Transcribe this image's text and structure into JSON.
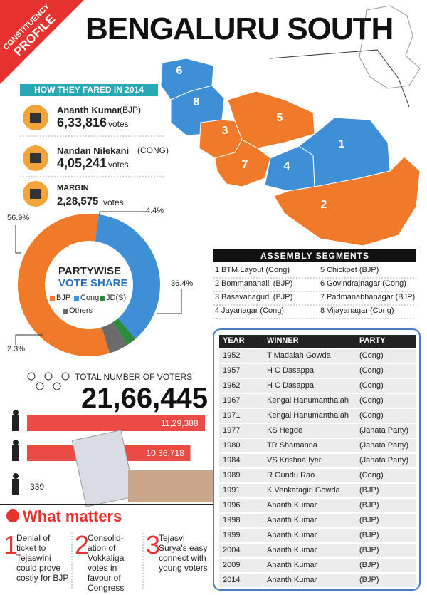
{
  "header": {
    "ribbon_1": "CONSTITUENCY",
    "ribbon_2": "PROFILE",
    "title": "BENGALURU SOUTH"
  },
  "results": {
    "heading": "HOW THEY FARED IN 2014",
    "candidates": [
      {
        "name": "Ananth Kumar",
        "party": "(BJP)",
        "votes": "6,33,816",
        "unit": "votes"
      },
      {
        "name": "Nandan Nilekani",
        "party": "(CONG)",
        "votes": "4,05,241",
        "unit": "votes"
      }
    ],
    "margin_label": "MARGIN",
    "margin": "2,28,575",
    "margin_unit": "votes"
  },
  "vote_share": {
    "title_1": "PARTYWISE",
    "title_2": "VOTE SHARE",
    "series": [
      {
        "name": "BJP",
        "color": "#f07a2a",
        "value": 56.9,
        "value_label": "56.9%"
      },
      {
        "name": "Cong",
        "color": "#3e8fd6",
        "value": 36.4,
        "value_label": "36.4%"
      },
      {
        "name": "JD(S)",
        "color": "#2e8b3e",
        "value": 2.3,
        "value_label": "2.3%"
      },
      {
        "name": "Others",
        "color": "#6b6b6b",
        "value": 4.4,
        "value_label": "4.4%"
      }
    ]
  },
  "voters": {
    "label": "TOTAL NUMBER OF VOTERS",
    "total": "21,66,445",
    "bars": [
      {
        "value": 1129388,
        "value_label": "11,29,388"
      },
      {
        "value": 1036718,
        "value_label": "10,36,718"
      },
      {
        "value": 339,
        "value_label": "339"
      }
    ]
  },
  "segments": {
    "heading": "ASSEMBLY SEGMENTS",
    "items": [
      {
        "num": "1",
        "name": "BTM Layout (Cong)"
      },
      {
        "num": "2",
        "name": "Bommanahalli (BJP)"
      },
      {
        "num": "3",
        "name": "Basavanagudi (BJP)"
      },
      {
        "num": "4",
        "name": "Jayanagar (Cong)"
      },
      {
        "num": "5",
        "name": "Chickpet (BJP)"
      },
      {
        "num": "6",
        "name": "Govindrajnagar (Cong)"
      },
      {
        "num": "7",
        "name": "Padmanabhanagar (BJP)"
      },
      {
        "num": "8",
        "name": "Vijayanagar (Cong)"
      }
    ]
  },
  "table": {
    "header": [
      "YEAR",
      "WINNER",
      "PARTY"
    ],
    "rows": [
      [
        "1952",
        "T Madaiah Gowda",
        "(Cong)"
      ],
      [
        "1957",
        "H C Dasappa",
        "(Cong)"
      ],
      [
        "1962",
        "H C Dasappa",
        "(Cong)"
      ],
      [
        "1967",
        "Kengal Hanumanthaiah",
        "(Cong)"
      ],
      [
        "1971",
        "Kengal Hanumanthaiah",
        "(Cong)"
      ],
      [
        "1977",
        "KS Hegde",
        "(Janata Party)"
      ],
      [
        "1980",
        "TR Shamanna",
        "(Janata Party)"
      ],
      [
        "1984",
        "VS Krishna Iyer",
        "(Janata Party)"
      ],
      [
        "1989",
        "R Gundu Rao",
        "(Cong)"
      ],
      [
        "1991",
        "K Venkatagiri Gowda",
        "(BJP)"
      ],
      [
        "1996",
        "Ananth Kumar",
        "(BJP)"
      ],
      [
        "1998",
        "Ananth Kumar",
        "(BJP)"
      ],
      [
        "1999",
        "Ananth Kumar",
        "(BJP)"
      ],
      [
        "2004",
        "Ananth Kumar",
        "(BJP)"
      ],
      [
        "2009",
        "Ananth Kumar",
        "(BJP)"
      ],
      [
        "2014",
        "Ananth Kumar",
        "(BJP)"
      ]
    ]
  },
  "what_matters": {
    "heading": "What matters",
    "items": [
      {
        "num": "1",
        "text": "Denial of ticket to Tejaswini could prove costly for BJP"
      },
      {
        "num": "2",
        "text": "Consolid-ation of Vokkaliga votes in favour of Congress"
      },
      {
        "num": "3",
        "text": "Tejasvi Surya's easy connect with young voters"
      }
    ]
  }
}
